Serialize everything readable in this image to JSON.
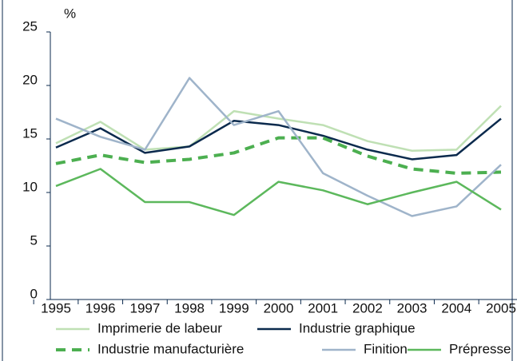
{
  "chart_data": {
    "type": "line",
    "y_unit": "%",
    "categories": [
      "1995",
      "1996",
      "1997",
      "1998",
      "1999",
      "2000",
      "2001",
      "2002",
      "2003",
      "2004",
      "2005"
    ],
    "ylim": [
      0,
      25
    ],
    "yticks": [
      0,
      5,
      10,
      15,
      20,
      25
    ],
    "legend": "bottom",
    "series": [
      {
        "name": "Imprimerie de labeur",
        "color": "#bfe0b4",
        "style": "solid",
        "values": [
          14.6,
          16.6,
          14.0,
          14.3,
          17.6,
          16.9,
          16.3,
          14.8,
          13.9,
          14.0,
          18.1
        ]
      },
      {
        "name": "Industrie graphique",
        "color": "#0b2a4d",
        "style": "solid",
        "values": [
          14.2,
          16.0,
          13.7,
          14.3,
          16.7,
          16.3,
          15.3,
          14.0,
          13.1,
          13.5,
          16.9
        ]
      },
      {
        "name": "Industrie manufacturière",
        "color": "#4caf50",
        "style": "dashed",
        "values": [
          12.7,
          13.5,
          12.8,
          13.1,
          13.7,
          15.1,
          15.1,
          13.4,
          12.2,
          11.8,
          11.9
        ]
      },
      {
        "name": "Finition",
        "color": "#9fb4ca",
        "style": "solid",
        "values": [
          16.9,
          15.2,
          14.0,
          20.7,
          16.3,
          17.6,
          11.8,
          9.7,
          7.8,
          8.7,
          12.6
        ]
      },
      {
        "name": "Prépresse",
        "color": "#5cb85c",
        "style": "solid",
        "values": [
          10.6,
          12.2,
          9.1,
          9.1,
          7.9,
          11.0,
          10.2,
          8.9,
          10.0,
          11.0,
          8.4
        ]
      }
    ]
  }
}
